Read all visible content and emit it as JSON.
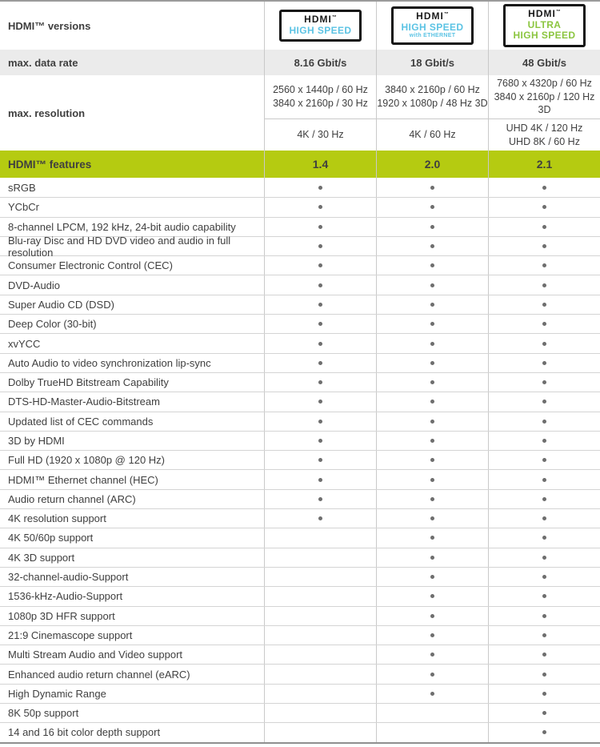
{
  "chart_data": {
    "type": "table",
    "title": "HDMI versions and features comparison",
    "versions_row": {
      "label": "HDMI™ versions",
      "badges": [
        {
          "name": "hdmi-high-speed",
          "logo": "HDMI",
          "tm": "™",
          "lines": [
            "HIGH SPEED"
          ],
          "sub": "",
          "color_key": "badge_blue"
        },
        {
          "name": "hdmi-high-speed-ethernet",
          "logo": "HDMI",
          "tm": "™",
          "lines": [
            "HIGH SPEED"
          ],
          "sub": "with ETHERNET",
          "color_key": "badge_blue"
        },
        {
          "name": "hdmi-ultra-high-speed",
          "logo": "HDMI",
          "tm": "™",
          "lines": [
            "ULTRA",
            "HIGH SPEED"
          ],
          "sub": "",
          "color_key": "badge_green"
        }
      ]
    },
    "data_rate": {
      "label": "max. data rate",
      "values": [
        "8.16 Gbit/s",
        "18 Gbit/s",
        "48 Gbit/s"
      ]
    },
    "resolution": {
      "label": "max. resolution",
      "primary": [
        [
          "2560 x 1440p / 60 Hz",
          "3840 x 2160p / 30 Hz"
        ],
        [
          "3840 x 2160p / 60 Hz",
          "1920 x 1080p / 48 Hz 3D"
        ],
        [
          "7680 x 4320p / 60 Hz",
          "3840 x 2160p / 120 Hz 3D"
        ]
      ],
      "secondary": [
        [
          "4K / 30 Hz",
          ""
        ],
        [
          "4K / 60 Hz",
          ""
        ],
        [
          "UHD 4K / 120 Hz",
          "UHD 8K / 60 Hz"
        ]
      ]
    },
    "features_header": {
      "label": "HDMI™ features",
      "values": [
        "1.4",
        "2.0",
        "2.1"
      ]
    },
    "features": [
      {
        "label": "sRGB",
        "support": [
          true,
          true,
          true
        ]
      },
      {
        "label": "YCbCr",
        "support": [
          true,
          true,
          true
        ]
      },
      {
        "label": "8-channel LPCM, 192 kHz, 24-bit audio capability",
        "support": [
          true,
          true,
          true
        ]
      },
      {
        "label": "Blu-ray Disc and HD DVD video and audio in full resolution",
        "support": [
          true,
          true,
          true
        ]
      },
      {
        "label": "Consumer Electronic Control (CEC)",
        "support": [
          true,
          true,
          true
        ]
      },
      {
        "label": "DVD-Audio",
        "support": [
          true,
          true,
          true
        ]
      },
      {
        "label": "Super Audio CD (DSD)",
        "support": [
          true,
          true,
          true
        ]
      },
      {
        "label": "Deep Color (30-bit)",
        "support": [
          true,
          true,
          true
        ]
      },
      {
        "label": "xvYCC",
        "support": [
          true,
          true,
          true
        ]
      },
      {
        "label": "Auto Audio to video synchronization lip-sync",
        "support": [
          true,
          true,
          true
        ]
      },
      {
        "label": "Dolby TrueHD Bitstream Capability",
        "support": [
          true,
          true,
          true
        ]
      },
      {
        "label": "DTS-HD-Master-Audio-Bitstream",
        "support": [
          true,
          true,
          true
        ]
      },
      {
        "label": "Updated list of CEC commands",
        "support": [
          true,
          true,
          true
        ]
      },
      {
        "label": "3D by HDMI",
        "support": [
          true,
          true,
          true
        ]
      },
      {
        "label": "Full HD (1920 x 1080p @ 120 Hz)",
        "support": [
          true,
          true,
          true
        ]
      },
      {
        "label": "HDMI™ Ethernet channel (HEC)",
        "support": [
          true,
          true,
          true
        ]
      },
      {
        "label": "Audio return channel (ARC)",
        "support": [
          true,
          true,
          true
        ]
      },
      {
        "label": "4K resolution support",
        "support": [
          true,
          true,
          true
        ]
      },
      {
        "label": "4K 50/60p support",
        "support": [
          false,
          true,
          true
        ]
      },
      {
        "label": "4K 3D support",
        "support": [
          false,
          true,
          true
        ]
      },
      {
        "label": "32-channel-audio-Support",
        "support": [
          false,
          true,
          true
        ]
      },
      {
        "label": "1536-kHz-Audio-Support",
        "support": [
          false,
          true,
          true
        ]
      },
      {
        "label": "1080p 3D HFR support",
        "support": [
          false,
          true,
          true
        ]
      },
      {
        "label": "21:9 Cinemascope support",
        "support": [
          false,
          true,
          true
        ]
      },
      {
        "label": "Multi Stream Audio and Video support",
        "support": [
          false,
          true,
          true
        ]
      },
      {
        "label": "Enhanced audio return channel (eARC)",
        "support": [
          false,
          true,
          true
        ]
      },
      {
        "label": "High Dynamic Range",
        "support": [
          false,
          true,
          true
        ]
      },
      {
        "label": "8K 50p support",
        "support": [
          false,
          false,
          true
        ]
      },
      {
        "label": "14 and 16 bit color depth support",
        "support": [
          false,
          false,
          true
        ]
      }
    ]
  },
  "colors": {
    "badge_blue": "#5bc3e4",
    "badge_green": "#8bc53f",
    "features_header_bg": "#b5cb11",
    "data_rate_bg": "#ebebeb",
    "dot": "#6e6e6e",
    "grid_line": "#c9c9c9",
    "text": "#3f3f3f"
  }
}
